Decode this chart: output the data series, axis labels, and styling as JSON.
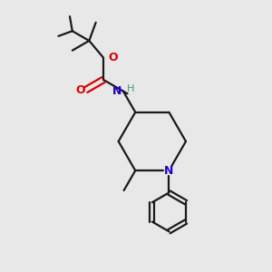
{
  "background_color": "#e8e8e8",
  "bond_color": "#1a1a1a",
  "N_color": "#2200cc",
  "O_color": "#dd0000",
  "H_color": "#3a9a8a",
  "figsize": [
    3.0,
    3.0
  ],
  "dpi": 100,
  "xlim": [
    0,
    10
  ],
  "ylim": [
    0,
    10
  ]
}
